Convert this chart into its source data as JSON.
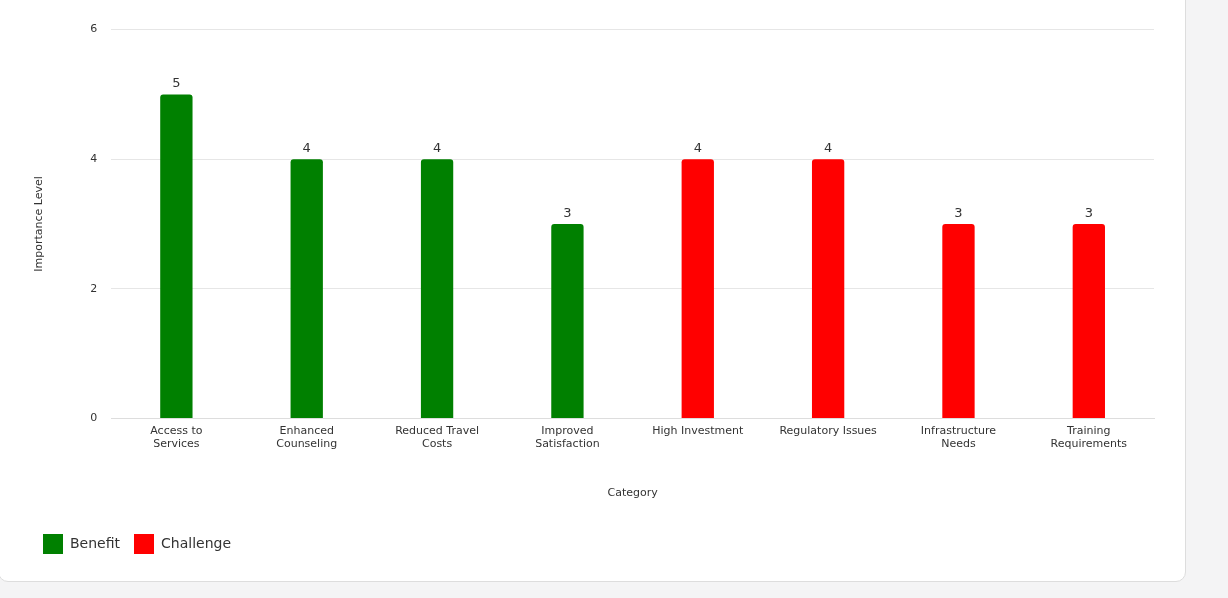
{
  "chart_data": {
    "type": "bar",
    "xlabel": "Category",
    "ylabel": "Importance Level",
    "categories": [
      "Access to Services",
      "Enhanced Counseling",
      "Reduced Travel Costs",
      "Improved Satisfaction",
      "High Investment",
      "Regulatory Issues",
      "Infrastructure Needs",
      "Training Requirements"
    ],
    "series": [
      {
        "name": "Benefit",
        "color": "#008000",
        "values": [
          5,
          4,
          4,
          3,
          null,
          null,
          null,
          null
        ]
      },
      {
        "name": "Challenge",
        "color": "#ff0000",
        "values": [
          null,
          null,
          null,
          null,
          4,
          4,
          3,
          3
        ]
      }
    ],
    "ylim": [
      0,
      6
    ],
    "yticks": [
      0,
      2,
      4,
      6
    ],
    "grid": "y",
    "legend": "bottom left",
    "data_labels": true
  }
}
